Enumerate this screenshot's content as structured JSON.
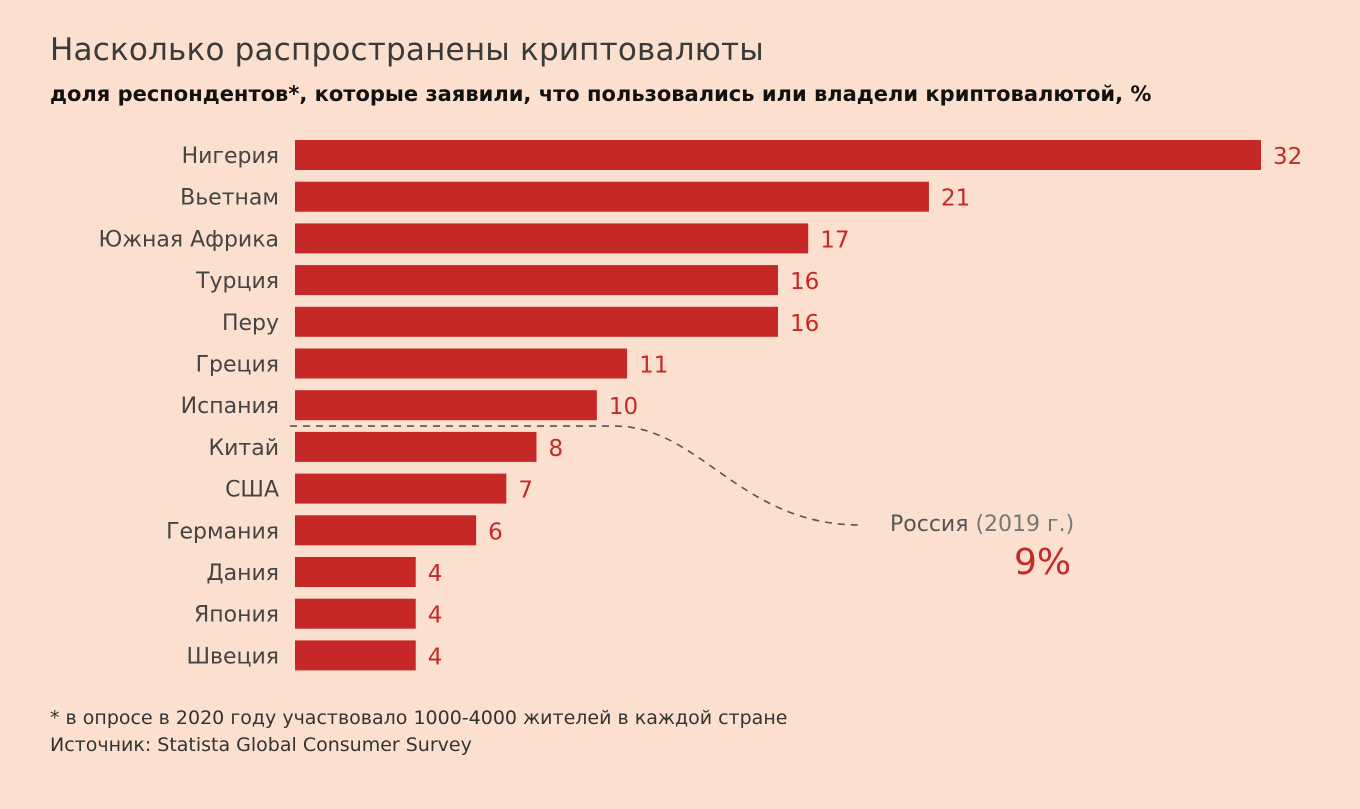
{
  "header": {
    "title": "Насколько распространены криптовалюты",
    "subtitle": "доля респондентов*, которые заявили, что пользовались или владели криптовалютой, %"
  },
  "chart_data": {
    "type": "bar",
    "orientation": "horizontal",
    "categories": [
      "Нигерия",
      "Вьетнам",
      "Южная Африка",
      "Турция",
      "Перу",
      "Греция",
      "Испания",
      "Китай",
      "США",
      "Германия",
      "Дания",
      "Япония",
      "Швеция"
    ],
    "values": [
      32,
      21,
      17,
      16,
      16,
      11,
      10,
      8,
      7,
      6,
      4,
      4,
      4
    ],
    "value_labels": [
      "32",
      "21",
      "17",
      "16",
      "16",
      "11",
      "10",
      "8",
      "7",
      "6",
      "4",
      "4",
      "4"
    ],
    "xlim": [
      0,
      32
    ],
    "bar_color": "#c62828",
    "label_color": "#c62828",
    "grid": false,
    "annotation": {
      "label": "Россия",
      "year": "(2019 г.)",
      "value": 9,
      "value_text": "9%"
    }
  },
  "footer": {
    "note": "* в опросе в 2020 году участвовало 1000-4000 жителей в каждой стране",
    "source": "Источник: Statista Global Consumer Survey"
  }
}
